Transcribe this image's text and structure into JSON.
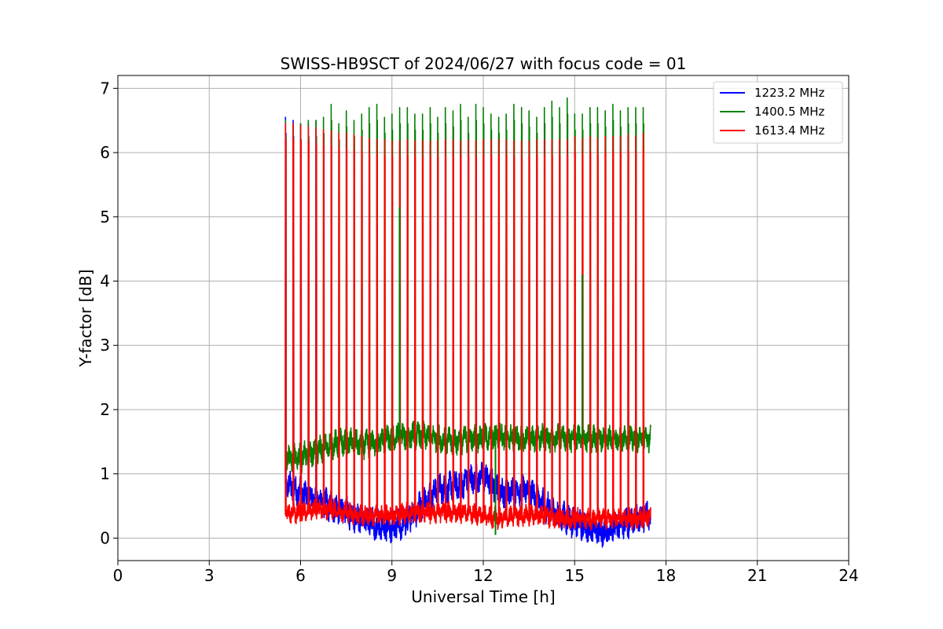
{
  "chart_data": {
    "type": "line",
    "title": "SWISS-HB9SCT of 2024/06/27 with focus code = 01",
    "xlabel": "Universal Time [h]",
    "ylabel": "Y-factor [dB]",
    "xlim": [
      0,
      24
    ],
    "ylim": [
      -0.35,
      7.2
    ],
    "xticks": [
      0,
      3,
      6,
      9,
      12,
      15,
      18,
      21,
      24
    ],
    "xtick_labels": [
      "0",
      "3",
      "6",
      "9",
      "12",
      "15",
      "18",
      "21",
      "24"
    ],
    "yticks": [
      0,
      1,
      2,
      3,
      4,
      5,
      6,
      7
    ],
    "ytick_labels": [
      "0",
      "1",
      "2",
      "3",
      "4",
      "5",
      "6",
      "7"
    ],
    "grid": true,
    "legend_position": "top-right",
    "time_range": [
      5.5,
      17.5
    ],
    "calibration_spike_times": [
      5.5,
      5.75,
      6.0,
      6.25,
      6.5,
      6.75,
      7.0,
      7.25,
      7.5,
      7.75,
      8.0,
      8.25,
      8.5,
      8.75,
      9.0,
      9.25,
      9.5,
      9.75,
      10.0,
      10.25,
      10.5,
      10.75,
      11.0,
      11.25,
      11.5,
      11.75,
      12.0,
      12.25,
      12.5,
      12.75,
      13.0,
      13.25,
      13.5,
      13.75,
      14.0,
      14.25,
      14.5,
      14.75,
      15.0,
      15.25,
      15.5,
      15.75,
      16.0,
      16.25,
      16.5,
      16.75,
      17.0,
      17.25
    ],
    "series": [
      {
        "name": "1223.2 MHz",
        "color": "#0000ff",
        "baseline_profile": {
          "x": [
            5.5,
            6.0,
            6.5,
            7.0,
            7.5,
            8.0,
            8.5,
            9.0,
            9.5,
            10.0,
            10.5,
            11.0,
            11.5,
            12.0,
            12.3,
            12.6,
            13.0,
            13.5,
            14.0,
            14.5,
            15.0,
            15.5,
            16.0,
            16.5,
            17.0,
            17.5
          ],
          "y": [
            0.85,
            0.7,
            0.6,
            0.5,
            0.4,
            0.3,
            0.2,
            0.15,
            0.25,
            0.55,
            0.75,
            0.8,
            0.9,
            0.95,
            0.85,
            0.7,
            0.75,
            0.75,
            0.5,
            0.35,
            0.25,
            0.15,
            0.1,
            0.2,
            0.3,
            0.4
          ]
        },
        "spike_peaks": [
          6.55,
          6.5,
          6.45,
          6.45,
          6.5
        ]
      },
      {
        "name": "1400.5 MHz",
        "color": "#008000",
        "baseline_profile": {
          "x": [
            5.5,
            6.0,
            6.5,
            7.0,
            7.5,
            8.0,
            8.5,
            9.0,
            9.5,
            10.0,
            10.5,
            11.0,
            11.5,
            12.0,
            12.5,
            13.0,
            13.5,
            14.0,
            14.5,
            15.0,
            15.5,
            16.0,
            16.5,
            17.0,
            17.5
          ],
          "y": [
            1.25,
            1.25,
            1.35,
            1.45,
            1.5,
            1.45,
            1.5,
            1.55,
            1.6,
            1.6,
            1.55,
            1.5,
            1.55,
            1.55,
            1.6,
            1.55,
            1.55,
            1.55,
            1.55,
            1.55,
            1.55,
            1.55,
            1.55,
            1.55,
            1.55
          ]
        },
        "spike_peaks": [
          6.5,
          6.45,
          6.45,
          6.5,
          6.5,
          6.55,
          6.75,
          6.45,
          6.65,
          6.5,
          6.6,
          6.7,
          6.75,
          6.55,
          6.6,
          6.7,
          6.7,
          6.6,
          6.6,
          6.7,
          6.55,
          6.7,
          6.65,
          6.75,
          6.55,
          6.75,
          6.7,
          6.6,
          6.55,
          6.6,
          6.75,
          6.7,
          6.65,
          6.55,
          6.7,
          6.8,
          6.7,
          6.85,
          6.6,
          6.6,
          6.7,
          6.7,
          6.65,
          6.75,
          6.65,
          6.7,
          6.7,
          6.7
        ]
      },
      {
        "name": "1613.4 MHz",
        "color": "#ff0000",
        "baseline_profile": {
          "x": [
            5.5,
            6.0,
            6.5,
            7.0,
            7.5,
            8.0,
            8.5,
            9.0,
            9.5,
            10.0,
            10.5,
            11.0,
            11.5,
            12.0,
            12.5,
            13.0,
            13.5,
            14.0,
            14.5,
            15.0,
            15.5,
            16.0,
            16.5,
            17.0,
            17.5
          ],
          "y": [
            0.4,
            0.4,
            0.45,
            0.45,
            0.4,
            0.35,
            0.35,
            0.35,
            0.4,
            0.4,
            0.4,
            0.4,
            0.4,
            0.35,
            0.3,
            0.35,
            0.35,
            0.35,
            0.3,
            0.3,
            0.3,
            0.3,
            0.3,
            0.3,
            0.35
          ]
        },
        "spike_peaks": [
          6.45,
          6.45,
          6.42,
          6.4,
          6.38,
          6.36,
          6.34,
          6.3,
          6.3,
          6.28,
          6.25,
          6.22,
          6.2,
          6.2,
          6.18,
          6.18,
          6.2,
          6.18,
          6.18,
          6.18,
          6.18,
          6.2,
          6.2,
          6.18,
          6.2,
          6.18,
          6.2,
          6.2,
          6.2,
          6.2,
          6.18,
          6.18,
          6.18,
          6.2,
          6.2,
          6.2,
          6.2,
          6.2,
          6.25,
          6.22,
          6.25,
          6.22,
          6.25,
          6.25,
          6.25,
          6.28,
          6.25,
          6.3
        ]
      }
    ],
    "annotations": [
      {
        "series": "1400.5 MHz",
        "x": 9.25,
        "y": 5.15
      },
      {
        "series": "1400.5 MHz",
        "x": 15.25,
        "y": 4.1
      },
      {
        "series": "1400.5 MHz",
        "x": 12.4,
        "y": 0.05
      }
    ]
  }
}
